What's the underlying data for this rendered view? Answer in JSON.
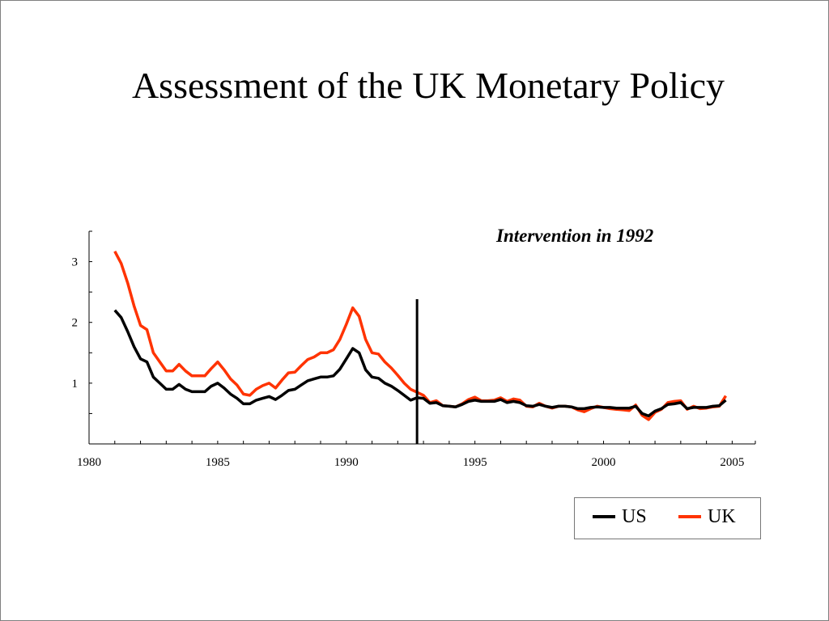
{
  "slide": {
    "title": "Assessment of the UK Monetary Policy"
  },
  "chart_data": {
    "type": "line",
    "xlim": [
      1980,
      2005.9
    ],
    "ylim": [
      0,
      3.5
    ],
    "x_ticks": [
      1980,
      1985,
      1990,
      1995,
      2000,
      2005
    ],
    "y_ticks": [
      1,
      2,
      3
    ],
    "intervention_year": 1992.75,
    "annotation": "Intervention in 1992",
    "legend_position": "bottom-right",
    "series": [
      {
        "name": "US",
        "color": "#000000",
        "x": [
          1981.0,
          1981.25,
          1981.5,
          1981.75,
          1982.0,
          1982.25,
          1982.5,
          1982.75,
          1983.0,
          1983.25,
          1983.5,
          1983.75,
          1984.0,
          1984.25,
          1984.5,
          1984.75,
          1985.0,
          1985.25,
          1985.5,
          1985.75,
          1986.0,
          1986.25,
          1986.5,
          1986.75,
          1987.0,
          1987.25,
          1987.5,
          1987.75,
          1988.0,
          1988.25,
          1988.5,
          1988.75,
          1989.0,
          1989.25,
          1989.5,
          1989.75,
          1990.0,
          1990.25,
          1990.5,
          1990.75,
          1991.0,
          1991.25,
          1991.5,
          1991.75,
          1992.0,
          1992.25,
          1992.5,
          1992.75,
          1993.0,
          1993.25,
          1993.5,
          1993.75,
          1994.0,
          1994.25,
          1994.5,
          1994.75,
          1995.0,
          1995.25,
          1995.5,
          1995.75,
          1996.0,
          1996.25,
          1996.5,
          1996.75,
          1997.0,
          1997.25,
          1997.5,
          1997.75,
          1998.0,
          1998.25,
          1998.5,
          1998.75,
          1999.0,
          1999.25,
          1999.5,
          1999.75,
          2000.0,
          2000.25,
          2000.5,
          2000.75,
          2001.0,
          2001.25,
          2001.5,
          2001.75,
          2002.0,
          2002.25,
          2002.5,
          2002.75,
          2003.0,
          2003.25,
          2003.5,
          2003.75,
          2004.0,
          2004.25,
          2004.5,
          2004.75
        ],
        "values": [
          2.2,
          2.08,
          1.85,
          1.6,
          1.4,
          1.35,
          1.1,
          1.0,
          0.9,
          0.9,
          0.98,
          0.9,
          0.86,
          0.86,
          0.86,
          0.95,
          1.0,
          0.92,
          0.82,
          0.75,
          0.66,
          0.66,
          0.72,
          0.75,
          0.78,
          0.73,
          0.8,
          0.88,
          0.9,
          0.97,
          1.04,
          1.07,
          1.1,
          1.1,
          1.12,
          1.23,
          1.4,
          1.57,
          1.5,
          1.22,
          1.1,
          1.08,
          1.0,
          0.95,
          0.88,
          0.8,
          0.72,
          0.76,
          0.75,
          0.67,
          0.68,
          0.63,
          0.62,
          0.61,
          0.65,
          0.7,
          0.72,
          0.7,
          0.7,
          0.7,
          0.73,
          0.68,
          0.7,
          0.68,
          0.63,
          0.62,
          0.65,
          0.62,
          0.6,
          0.62,
          0.62,
          0.61,
          0.58,
          0.58,
          0.6,
          0.61,
          0.6,
          0.6,
          0.59,
          0.59,
          0.59,
          0.62,
          0.5,
          0.46,
          0.54,
          0.58,
          0.65,
          0.66,
          0.68,
          0.58,
          0.6,
          0.6,
          0.6,
          0.62,
          0.63,
          0.72
        ]
      },
      {
        "name": "UK",
        "color": "#ff3300",
        "x": [
          1981.0,
          1981.25,
          1981.5,
          1981.75,
          1982.0,
          1982.25,
          1982.5,
          1982.75,
          1983.0,
          1983.25,
          1983.5,
          1983.75,
          1984.0,
          1984.25,
          1984.5,
          1984.75,
          1985.0,
          1985.25,
          1985.5,
          1985.75,
          1986.0,
          1986.25,
          1986.5,
          1986.75,
          1987.0,
          1987.25,
          1987.5,
          1987.75,
          1988.0,
          1988.25,
          1988.5,
          1988.75,
          1989.0,
          1989.25,
          1989.5,
          1989.75,
          1990.0,
          1990.25,
          1990.5,
          1990.75,
          1991.0,
          1991.25,
          1991.5,
          1991.75,
          1992.0,
          1992.25,
          1992.5,
          1992.75,
          1993.0,
          1993.25,
          1993.5,
          1993.75,
          1994.0,
          1994.25,
          1994.5,
          1994.75,
          1995.0,
          1995.25,
          1995.5,
          1995.75,
          1996.0,
          1996.25,
          1996.5,
          1996.75,
          1997.0,
          1997.25,
          1997.5,
          1997.75,
          1998.0,
          1998.25,
          1998.5,
          1998.75,
          1999.0,
          1999.25,
          1999.5,
          1999.75,
          2000.0,
          2000.25,
          2000.5,
          2000.75,
          2001.0,
          2001.25,
          2001.5,
          2001.75,
          2002.0,
          2002.25,
          2002.5,
          2002.75,
          2003.0,
          2003.25,
          2003.5,
          2003.75,
          2004.0,
          2004.25,
          2004.5,
          2004.75
        ],
        "values": [
          3.17,
          2.97,
          2.65,
          2.27,
          1.95,
          1.88,
          1.5,
          1.35,
          1.2,
          1.2,
          1.31,
          1.2,
          1.12,
          1.12,
          1.12,
          1.24,
          1.35,
          1.22,
          1.07,
          0.97,
          0.82,
          0.8,
          0.9,
          0.96,
          1.0,
          0.92,
          1.05,
          1.17,
          1.18,
          1.29,
          1.39,
          1.43,
          1.5,
          1.5,
          1.55,
          1.72,
          1.97,
          2.24,
          2.1,
          1.72,
          1.5,
          1.48,
          1.35,
          1.25,
          1.13,
          1.0,
          0.9,
          0.85,
          0.8,
          0.68,
          0.71,
          0.63,
          0.62,
          0.61,
          0.66,
          0.73,
          0.77,
          0.71,
          0.71,
          0.72,
          0.76,
          0.7,
          0.74,
          0.72,
          0.62,
          0.61,
          0.67,
          0.62,
          0.59,
          0.62,
          0.62,
          0.61,
          0.56,
          0.53,
          0.58,
          0.62,
          0.6,
          0.58,
          0.57,
          0.56,
          0.55,
          0.64,
          0.47,
          0.4,
          0.52,
          0.57,
          0.68,
          0.7,
          0.71,
          0.57,
          0.62,
          0.58,
          0.59,
          0.61,
          0.62,
          0.79
        ]
      }
    ]
  }
}
